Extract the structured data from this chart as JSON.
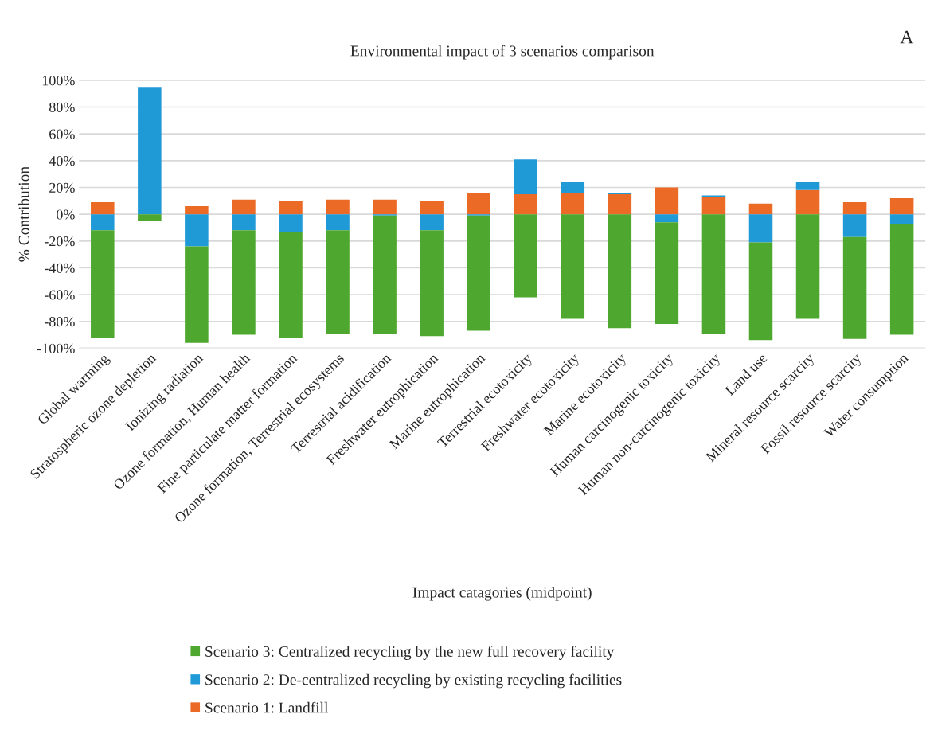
{
  "chart_data": {
    "type": "bar",
    "title": "Environmental impact of 3 scenarios comparison",
    "xlabel": "Impact catagories (midpoint)",
    "ylabel": "% Contribution",
    "annotations": [
      "A"
    ],
    "categories": [
      "Global warming",
      "Stratospheric ozone depletion",
      "Ionizing radiation",
      "Ozone formation, Human health",
      "Fine particulate matter formation",
      "Ozone formation, Terrestrial ecosystems",
      "Terrestrial acidification",
      "Freshwater eutrophication",
      "Marine eutrophication",
      "Terrestrial ecotoxicity",
      "Freshwater ecotoxicity",
      "Marine ecotoxicity",
      "Human carcinogenic toxicity",
      "Human non-carcinogenic toxicity",
      "Land use",
      "Mineral resource scarcity",
      "Fossil resource scarcity",
      "Water consumption"
    ],
    "stacked": true,
    "series": [
      {
        "name": "Scenario 1: Landfill",
        "color": "#eb6b26",
        "values": [
          9,
          0,
          6,
          11,
          10,
          11,
          11,
          10,
          16,
          15,
          16,
          15,
          20,
          13,
          8,
          18,
          9,
          12
        ]
      },
      {
        "name": "Scenario 2: De-centralized recycling by existing recycling facilities",
        "color": "#1f9ad6",
        "values": [
          -12,
          95,
          -24,
          -12,
          -13,
          -12,
          -1,
          -12,
          -1,
          26,
          8,
          1,
          -6,
          1,
          -21,
          6,
          -17,
          -7
        ]
      },
      {
        "name": "Scenario 3: Centralized recycling by the new full recovery facility",
        "color": "#4ea72e",
        "values": [
          -80,
          -5,
          -72,
          -78,
          -79,
          -77,
          -88,
          -79,
          -86,
          -62,
          -78,
          -85,
          -76,
          -89,
          -73,
          -78,
          -76,
          -83
        ]
      }
    ],
    "ylim": [
      -100,
      100
    ],
    "yticks": [
      {
        "value": -100,
        "label": "-100%"
      },
      {
        "value": -80,
        "label": "-80%"
      },
      {
        "value": -60,
        "label": "-60%"
      },
      {
        "value": -40,
        "label": "-40%"
      },
      {
        "value": -20,
        "label": "-20%"
      },
      {
        "value": 0,
        "label": "0%"
      },
      {
        "value": 20,
        "label": "20%"
      },
      {
        "value": 40,
        "label": "40%"
      },
      {
        "value": 60,
        "label": "60%"
      },
      {
        "value": 80,
        "label": "80%"
      },
      {
        "value": 100,
        "label": "100%"
      }
    ],
    "grid": "y",
    "legend": "bottom"
  }
}
